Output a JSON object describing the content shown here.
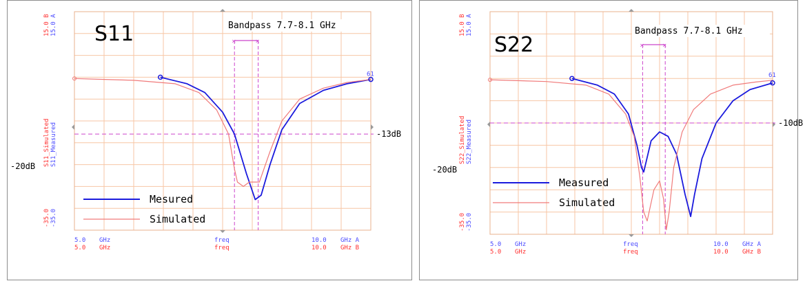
{
  "colors": {
    "measured": "#1a1add",
    "simulated": "#f07a7a",
    "grid": "#f7c6a4",
    "axis_a": "#4a4aff",
    "axis_b": "#ff3030",
    "marker": "#cc44cc"
  },
  "chart_data": [
    {
      "type": "line",
      "title": "S11",
      "annotation": "Bandpass 7.7-8.1 GHz",
      "x_range": [
        5.0,
        10.0
      ],
      "ylim": [
        -35.0,
        15.0
      ],
      "yaxis_left_top": [
        "15.0 B",
        "15.0 A"
      ],
      "yaxis_left_bottom": [
        "-35.0",
        "-35.0"
      ],
      "ylabel_simulated": "S11_Simulated",
      "ylabel_measured": "S11_Measured",
      "ref_label_left": "-20dB",
      "ref_label_right": "-13dB",
      "ref_level_db": -13,
      "band_ghz": [
        7.7,
        8.1
      ],
      "x_tick_left": [
        "5.0",
        "5.0"
      ],
      "x_unit_left": [
        "GHz",
        "GHz"
      ],
      "x_var": [
        "freq",
        "freq"
      ],
      "x_tick_right": [
        "10.0",
        "10.0"
      ],
      "x_unit_right": [
        "GHz A",
        "GHz B"
      ],
      "marker_label": "61",
      "legend": [
        "Mesured",
        "Simulated"
      ],
      "series": [
        {
          "name": "Mesured",
          "color": "#1a1add",
          "x": [
            6.45,
            6.9,
            7.2,
            7.5,
            7.7,
            7.9,
            8.05,
            8.15,
            8.3,
            8.5,
            8.8,
            9.2,
            9.6,
            10.0
          ],
          "y": [
            0,
            -1.5,
            -3.5,
            -8,
            -13,
            -22,
            -28,
            -27,
            -20,
            -12,
            -6,
            -3,
            -1.5,
            -0.5
          ]
        },
        {
          "name": "Simulated",
          "color": "#f07a7a",
          "x": [
            5.0,
            6.0,
            6.7,
            7.1,
            7.4,
            7.6,
            7.7,
            7.75,
            7.85,
            7.95,
            8.05,
            8.12,
            8.3,
            8.5,
            8.8,
            9.2,
            9.6,
            10.0
          ],
          "y": [
            -0.3,
            -0.7,
            -1.5,
            -3.5,
            -7.5,
            -13,
            -21,
            -24,
            -25,
            -24,
            -24,
            -24,
            -17,
            -10,
            -5,
            -2.5,
            -1.2,
            -0.5
          ]
        }
      ]
    },
    {
      "type": "line",
      "title": "S22",
      "annotation": "Bandpass 7.7-8.1 GHz",
      "x_range": [
        5.0,
        10.0
      ],
      "ylim": [
        -35.0,
        15.0
      ],
      "yaxis_left_top": [
        "15.0 B",
        "15.0 A"
      ],
      "yaxis_left_bottom": [
        "-35.0",
        "-35.0"
      ],
      "ylabel_simulated": "S22_Simulated",
      "ylabel_measured": "S22_Measured",
      "ref_label_left": "-20dB",
      "ref_label_right": "-10dB",
      "ref_level_db": -10,
      "band_ghz": [
        7.7,
        8.1
      ],
      "x_tick_left": [
        "5.0",
        "5.0"
      ],
      "x_unit_left": [
        "GHz",
        "GHz"
      ],
      "x_var": [
        "freq",
        "freq"
      ],
      "x_tick_right": [
        "10.0",
        "10.0"
      ],
      "x_unit_right": [
        "GHz A",
        "GHz B"
      ],
      "marker_label": "61",
      "legend": [
        "Measured",
        "Simulated"
      ],
      "series": [
        {
          "name": "Measured",
          "color": "#1a1add",
          "x": [
            6.45,
            6.9,
            7.2,
            7.45,
            7.6,
            7.68,
            7.72,
            7.85,
            8.0,
            8.15,
            8.3,
            8.45,
            8.55,
            8.62,
            8.75,
            9.0,
            9.3,
            9.6,
            10.0
          ],
          "y": [
            0,
            -1.5,
            -3.5,
            -8,
            -15,
            -20,
            -21,
            -14,
            -12,
            -13,
            -17,
            -26,
            -31,
            -26,
            -18,
            -10,
            -5,
            -2.5,
            -1
          ]
        },
        {
          "name": "Simulated",
          "color": "#f07a7a",
          "x": [
            5.0,
            6.0,
            6.7,
            7.1,
            7.4,
            7.55,
            7.65,
            7.72,
            7.78,
            7.9,
            8.0,
            8.07,
            8.12,
            8.17,
            8.25,
            8.4,
            8.6,
            8.9,
            9.3,
            9.7,
            10.0
          ],
          "y": [
            -0.3,
            -0.7,
            -1.5,
            -3.5,
            -8,
            -13,
            -22,
            -30,
            -32,
            -25,
            -23,
            -27,
            -34,
            -30,
            -20,
            -12,
            -7,
            -3.5,
            -1.5,
            -0.8,
            -0.4
          ]
        }
      ]
    }
  ]
}
